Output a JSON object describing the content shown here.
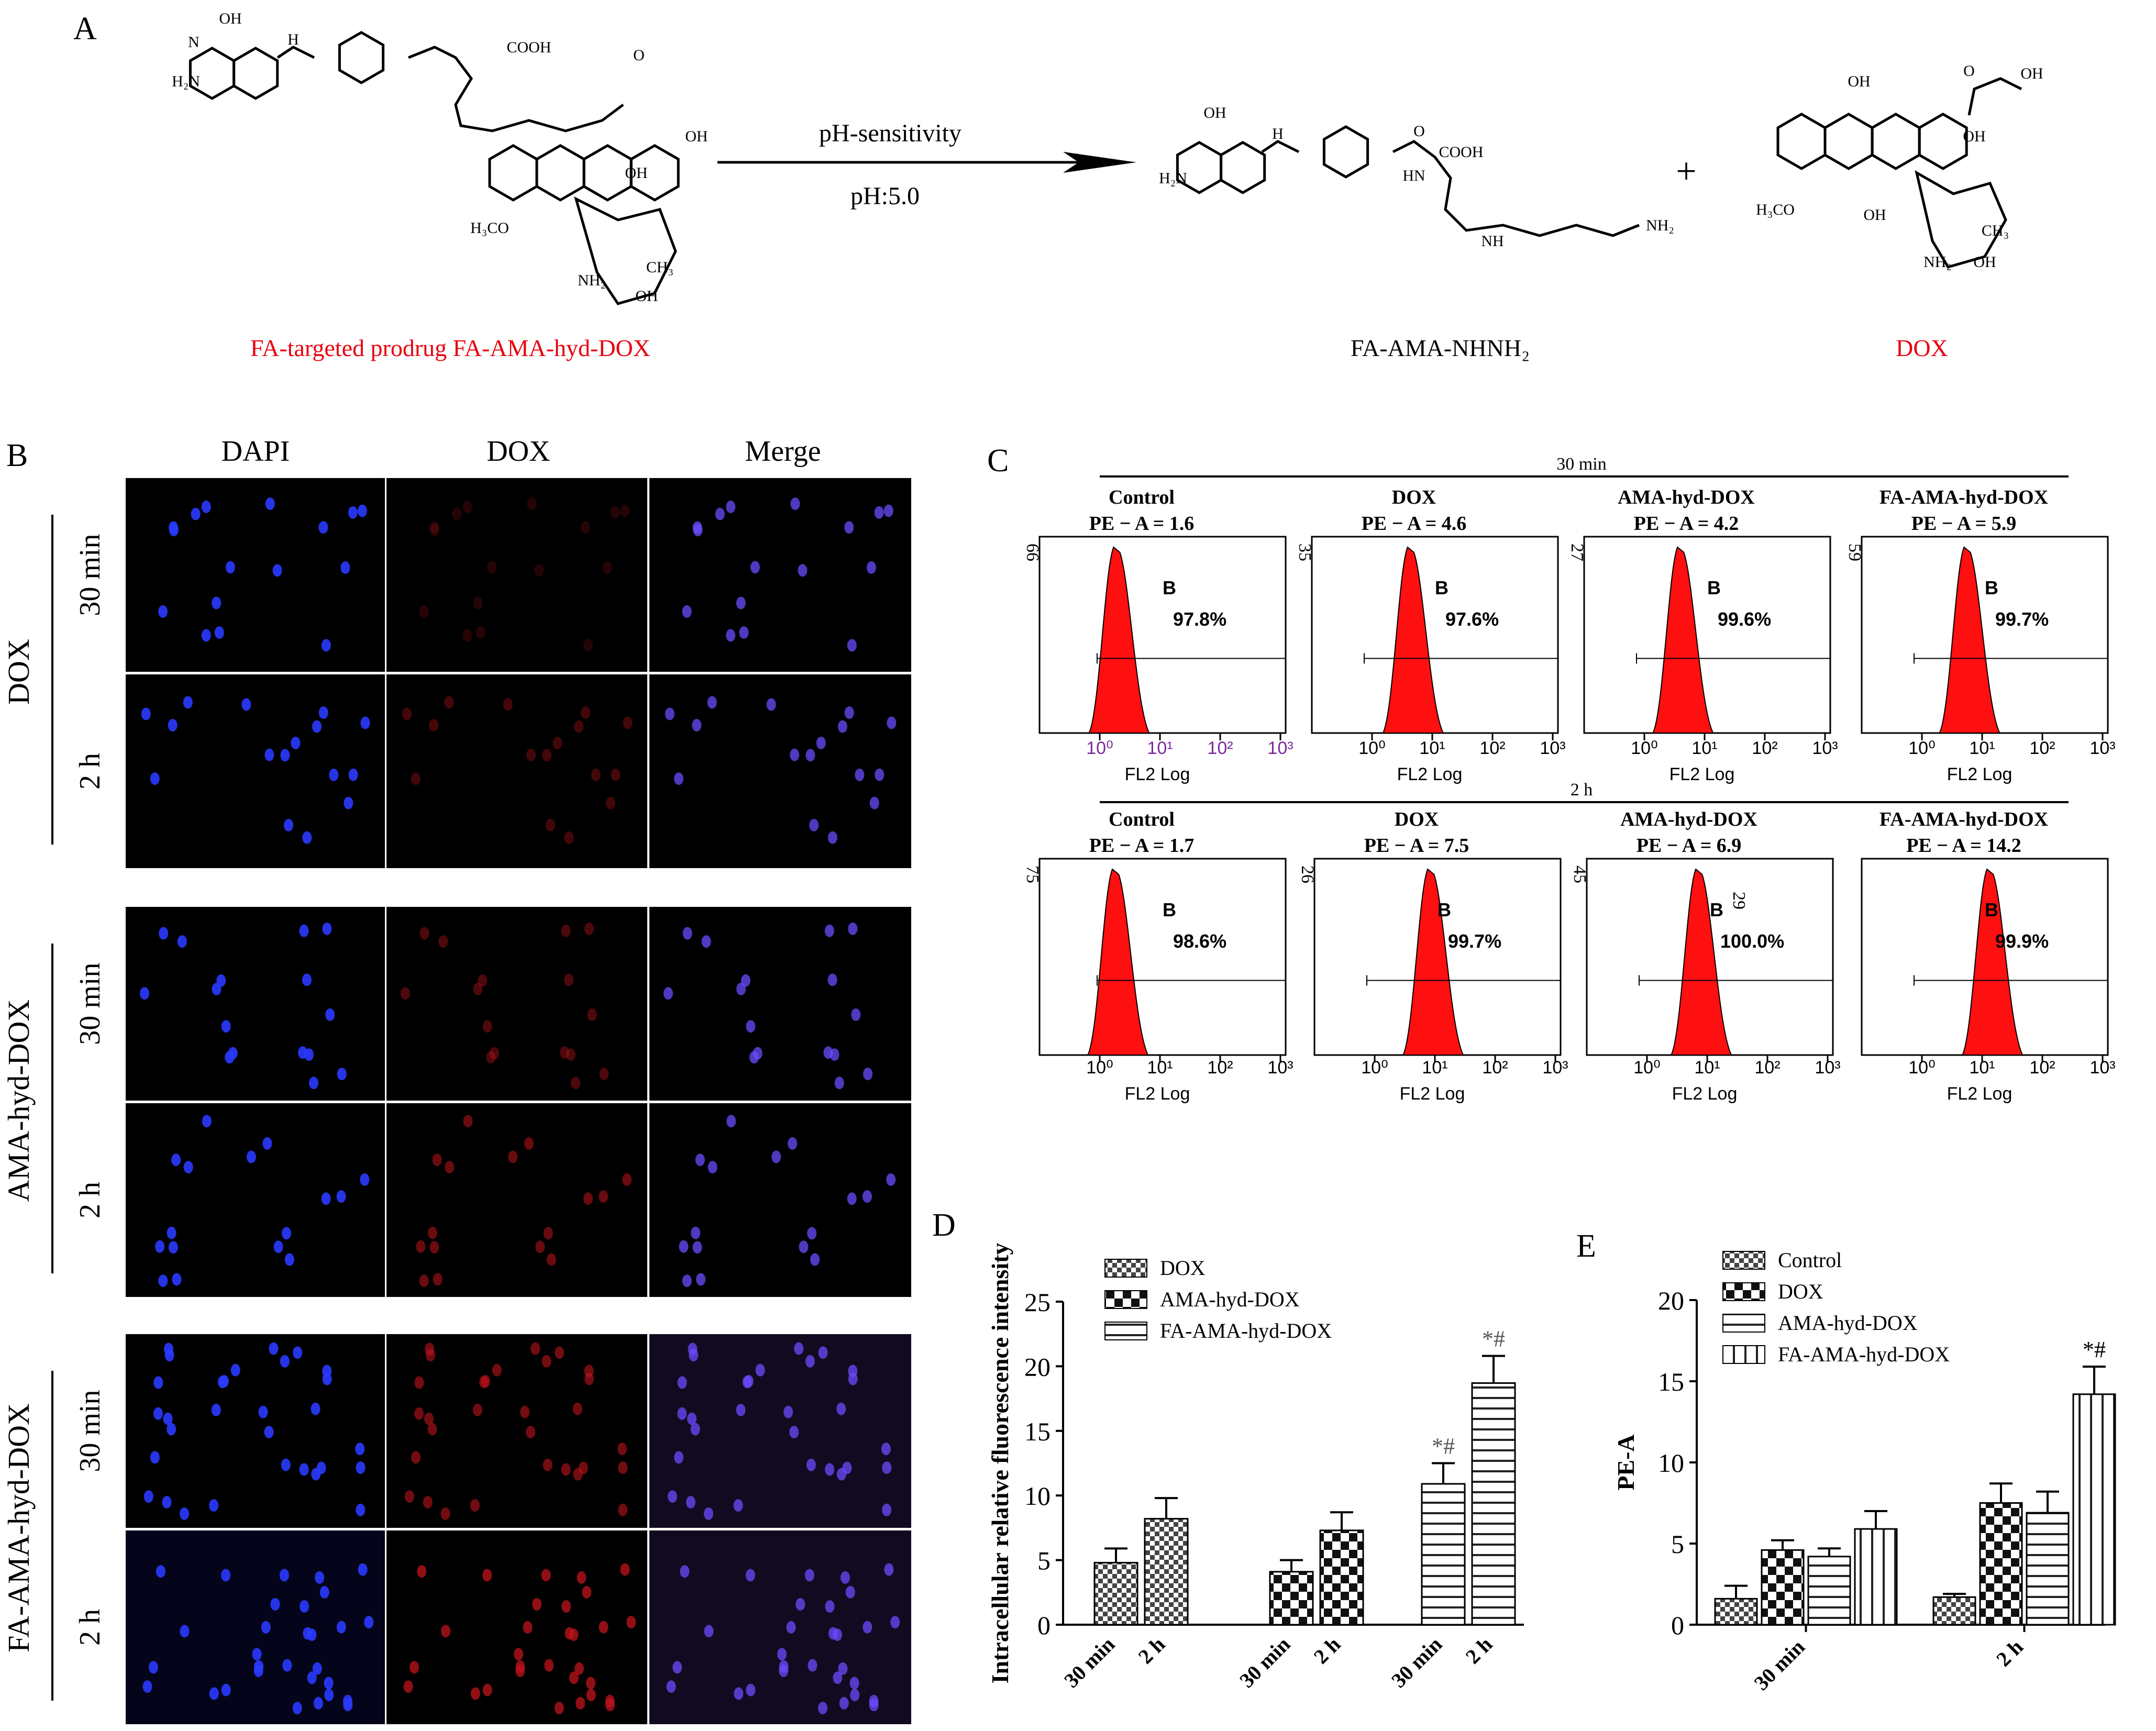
{
  "panel_letters": {
    "a": "A",
    "b": "B",
    "c": "C",
    "d": "D",
    "e": "E"
  },
  "scheme": {
    "arrow_top": "pH-sensitivity",
    "arrow_bottom": "pH:5.0",
    "plus": "+",
    "prodrug_label": "FA-targeted prodrug FA-AMA-hyd-DOX",
    "product1_label": "FA-AMA-NHNH₂",
    "product2_label": "DOX",
    "label_color_red": "#e8000e",
    "atoms": {
      "oh": "OH",
      "h2n": "H₂N",
      "n": "N",
      "h": "H",
      "o": "O",
      "cooh": "COOH",
      "h3co": "H₃CO",
      "ch3": "CH₃",
      "nh": "NH",
      "nhnh2": "NH₂",
      "hn": "HN"
    }
  },
  "microscopy": {
    "columns": [
      "DAPI",
      "DOX",
      "Merge"
    ],
    "groups": [
      {
        "name": "DOX",
        "rows": [
          "30 min",
          "2 h"
        ]
      },
      {
        "name": "AMA-hyd-DOX",
        "rows": [
          "30 min",
          "2 h"
        ]
      },
      {
        "name": "FA-AMA-hyd-DOX",
        "rows": [
          "30 min",
          "2 h"
        ]
      }
    ]
  },
  "flow": {
    "fill_color": "#ff1010",
    "axis_label": "FL2 Log",
    "gate_label": "B",
    "tick_labels": [
      "10⁰",
      "10¹",
      "10²",
      "10³"
    ],
    "rows": [
      {
        "time": "30 min",
        "panels": [
          {
            "name": "Control",
            "pe": "PE − A = 1.6",
            "ymax": "66",
            "pct": "97.8%",
            "peak": 0.3
          },
          {
            "name": "DOX",
            "pe": "PE − A = 4.6",
            "ymax": "35",
            "pct": "97.6%",
            "peak": 0.66
          },
          {
            "name": "AMA-hyd-DOX",
            "pe": "PE − A = 4.2",
            "ymax": "27",
            "pct": "99.6%",
            "peak": 0.62
          },
          {
            "name": "FA-AMA-hyd-DOX",
            "pe": "PE − A = 5.9",
            "ymax": "59",
            "pct": "99.7%",
            "peak": 0.77
          }
        ]
      },
      {
        "time": "2 h",
        "panels": [
          {
            "name": "Control",
            "pe": "PE − A = 1.7",
            "ymax": "75",
            "pct": "98.6%",
            "peak": 0.28
          },
          {
            "name": "DOX",
            "pe": "PE − A = 7.5",
            "ymax": "26",
            "pct": "99.7%",
            "peak": 0.95
          },
          {
            "name": "AMA-hyd-DOX",
            "pe": "PE − A = 6.9",
            "ymax": "45",
            "pct": "100.0%",
            "peak": 0.88,
            "extra_label": "29"
          },
          {
            "name": "FA-AMA-hyd-DOX",
            "pe": "PE − A = 14.2",
            "ymax": "",
            "pct": "99.9%",
            "peak": 1.15
          }
        ]
      }
    ]
  },
  "chart_data": [
    {
      "type": "bar",
      "ylabel": "Intracellular relative fluorescence intensity",
      "ylim": [
        0,
        25
      ],
      "yticks": [
        0,
        5,
        10,
        15,
        20,
        25
      ],
      "legend_position": "top-left",
      "groups": [
        {
          "bars": [
            {
              "label": "30 min",
              "series": "DOX",
              "value": 4.8,
              "err": 1.1
            },
            {
              "label": "2 h",
              "series": "DOX",
              "value": 8.2,
              "err": 1.6
            }
          ]
        },
        {
          "bars": [
            {
              "label": "30 min",
              "series": "AMA-hyd-DOX",
              "value": 4.1,
              "err": 0.9
            },
            {
              "label": "2 h",
              "series": "AMA-hyd-DOX",
              "value": 7.3,
              "err": 1.4
            }
          ]
        },
        {
          "bars": [
            {
              "label": "30 min",
              "series": "FA-AMA-hyd-DOX",
              "value": 10.9,
              "err": 1.6,
              "mark": "*#"
            },
            {
              "label": "2 h",
              "series": "FA-AMA-hyd-DOX",
              "value": 18.7,
              "err": 2.1,
              "mark": "*#"
            }
          ]
        }
      ],
      "series": [
        {
          "name": "DOX",
          "pattern": "checker-small"
        },
        {
          "name": "AMA-hyd-DOX",
          "pattern": "checker-large"
        },
        {
          "name": "FA-AMA-hyd-DOX",
          "pattern": "hstripe"
        }
      ]
    },
    {
      "type": "bar",
      "ylabel": "PE-A",
      "ylim": [
        0,
        20
      ],
      "yticks": [
        0,
        5,
        10,
        15,
        20
      ],
      "legend_position": "top-left",
      "categories": [
        "30 min",
        "2 h"
      ],
      "series": [
        {
          "name": "Control",
          "pattern": "checker-small",
          "values": [
            1.6,
            1.7
          ],
          "errors": [
            0.8,
            0.2
          ]
        },
        {
          "name": "DOX",
          "pattern": "checker-large",
          "values": [
            4.6,
            7.5
          ],
          "errors": [
            0.6,
            1.2
          ]
        },
        {
          "name": "AMA-hyd-DOX",
          "pattern": "hstripe",
          "values": [
            4.2,
            6.9
          ],
          "errors": [
            0.5,
            1.3
          ]
        },
        {
          "name": "FA-AMA-hyd-DOX",
          "pattern": "vstripe",
          "values": [
            5.9,
            14.2
          ],
          "errors": [
            1.1,
            1.7
          ],
          "marks": [
            "",
            "*#"
          ]
        }
      ]
    }
  ]
}
